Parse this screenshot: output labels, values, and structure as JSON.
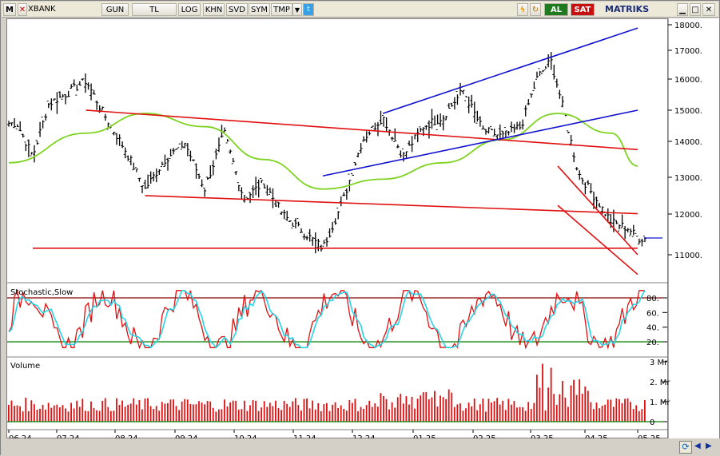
{
  "toolbar": {
    "m_label": "M",
    "symbol": "XBANK",
    "period": "GUN",
    "currency": "TL",
    "log": "LOG",
    "khn": "KHN",
    "svd": "SVD",
    "sym": "SYM",
    "tmp": "TMP",
    "buy": "AL",
    "sell": "SAT",
    "brand": "MATRIKS"
  },
  "price_axis": {
    "ticks": [
      "18000.",
      "17000.",
      "16000.",
      "15000.",
      "14000.",
      "13000.",
      "12000.",
      "11000."
    ]
  },
  "stoch_panel": {
    "title": "Stochastic,Slow",
    "ticks": [
      "80.",
      "60.",
      "40.",
      "20."
    ]
  },
  "volume_panel": {
    "title": "Volume",
    "ticks": [
      "3 Mr",
      "2. Mr",
      "1. Mr",
      "0"
    ]
  },
  "x_axis": {
    "ticks": [
      "06.24",
      "07.24",
      "08.24",
      "09.24",
      "10.24",
      "11.24",
      "12.24",
      "01.25",
      "02.25",
      "03.25",
      "04.25",
      "05.25"
    ]
  },
  "colors": {
    "price_bars": "#000000",
    "moving_average": "#7ed321",
    "stoch_k": "#e01010",
    "stoch_d": "#29d3e8",
    "volume": "#e01010",
    "trend_red": "#e01010",
    "trend_blue": "#1010d0",
    "stoch_80": "#8b0000",
    "stoch_20": "#008000"
  },
  "chart_data": {
    "type": "ohlc",
    "symbol": "XBANK",
    "x_ticks": [
      "06.24",
      "07.24",
      "08.24",
      "09.24",
      "10.24",
      "11.24",
      "12.24",
      "01.25",
      "02.25",
      "03.25",
      "04.25",
      "05.25"
    ],
    "price_ylim": [
      10300,
      18200
    ],
    "price_keypoints": [
      {
        "x": "06.24",
        "price": 15000
      },
      {
        "x": "06.24",
        "price": 14000
      },
      {
        "x": "06.24",
        "price": 15600
      },
      {
        "x": "07.24",
        "price": 15900
      },
      {
        "x": "07.24",
        "price": 16300
      },
      {
        "x": "07.24",
        "price": 15200
      },
      {
        "x": "08.24",
        "price": 14200
      },
      {
        "x": "08.24",
        "price": 13000
      },
      {
        "x": "08.24",
        "price": 13900
      },
      {
        "x": "09.24",
        "price": 14400
      },
      {
        "x": "09.24",
        "price": 13000
      },
      {
        "x": "09.24",
        "price": 14700
      },
      {
        "x": "10.24",
        "price": 12700
      },
      {
        "x": "10.24",
        "price": 13200
      },
      {
        "x": "10.24",
        "price": 12200
      },
      {
        "x": "11.24",
        "price": 11700
      },
      {
        "x": "11.24",
        "price": 11200
      },
      {
        "x": "11.24",
        "price": 12600
      },
      {
        "x": "12.24",
        "price": 14500
      },
      {
        "x": "12.24",
        "price": 15200
      },
      {
        "x": "12.24",
        "price": 14000
      },
      {
        "x": "01.25",
        "price": 14900
      },
      {
        "x": "01.25",
        "price": 15200
      },
      {
        "x": "01.25",
        "price": 16000
      },
      {
        "x": "02.25",
        "price": 14800
      },
      {
        "x": "02.25",
        "price": 14600
      },
      {
        "x": "02.25",
        "price": 14900
      },
      {
        "x": "03.25",
        "price": 16400
      },
      {
        "x": "03.25",
        "price": 16900
      },
      {
        "x": "03.25",
        "price": 15300
      },
      {
        "x": "03.25",
        "price": 13500
      },
      {
        "x": "04.25",
        "price": 12800
      },
      {
        "x": "04.25",
        "price": 12000
      },
      {
        "x": "04.25",
        "price": 11800
      },
      {
        "x": "05.25",
        "price": 11500
      }
    ],
    "moving_average": [
      {
        "x": "06.24",
        "price": 13800
      },
      {
        "x": "07.24",
        "price": 14700
      },
      {
        "x": "08.24",
        "price": 15300
      },
      {
        "x": "09.24",
        "price": 14900
      },
      {
        "x": "10.24",
        "price": 13900
      },
      {
        "x": "11.24",
        "price": 13000
      },
      {
        "x": "12.24",
        "price": 13300
      },
      {
        "x": "01.25",
        "price": 13800
      },
      {
        "x": "02.25",
        "price": 14500
      },
      {
        "x": "03.25",
        "price": 15300
      },
      {
        "x": "04.25",
        "price": 14700
      },
      {
        "x": "05.25",
        "price": 13700
      }
    ],
    "trend_lines": [
      {
        "color": "red",
        "from": {
          "x": "07.24",
          "price": 15400
        },
        "to": {
          "x": "05.25",
          "price": 14200
        }
      },
      {
        "color": "red",
        "from": {
          "x": "08.24",
          "price": 12800
        },
        "to": {
          "x": "05.25",
          "price": 12250
        }
      },
      {
        "color": "red",
        "from": {
          "x": "06.24",
          "price": 11200
        },
        "to": {
          "x": "05.25",
          "price": 11200
        }
      },
      {
        "color": "red",
        "from": {
          "x": "03.25",
          "price": 13700
        },
        "to": {
          "x": "05.25",
          "price": 11000
        }
      },
      {
        "color": "red",
        "from": {
          "x": "03.25",
          "price": 12500
        },
        "to": {
          "x": "05.25",
          "price": 10400
        }
      },
      {
        "color": "blue",
        "from": {
          "x": "12.24",
          "price": 15300
        },
        "to": {
          "x": "05.25",
          "price": 17900
        }
      },
      {
        "color": "blue",
        "from": {
          "x": "11.24",
          "price": 13400
        },
        "to": {
          "x": "05.25",
          "price": 15400
        }
      }
    ],
    "stochastic_ylim": [
      0,
      100
    ],
    "stochastic_levels": [
      80,
      20
    ],
    "volume_ylim": [
      0,
      3
    ],
    "volume_unit": "Mr"
  }
}
